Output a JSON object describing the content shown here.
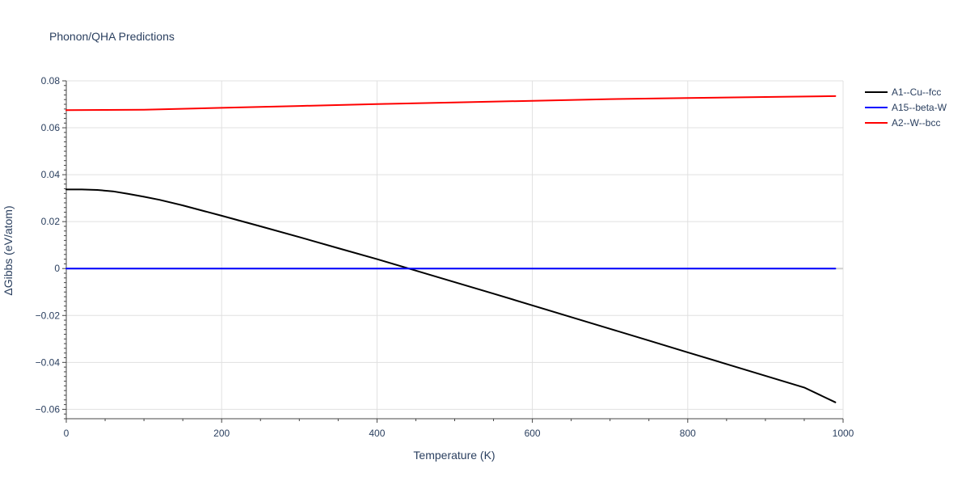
{
  "chart_data": {
    "type": "line",
    "title": "Phonon/QHA Predictions",
    "xlabel": "Temperature (K)",
    "ylabel": "ΔGibbs (eV/atom)",
    "xlim": [
      0,
      1000
    ],
    "ylim": [
      -0.064,
      0.08
    ],
    "xticks": [
      0,
      200,
      400,
      600,
      800,
      1000
    ],
    "xtick_labels": [
      "0",
      "200",
      "400",
      "600",
      "800",
      "1000"
    ],
    "yticks": [
      -0.06,
      -0.04,
      -0.02,
      0,
      0.02,
      0.04,
      0.06,
      0.08
    ],
    "ytick_labels": [
      "−0.06",
      "−0.04",
      "−0.02",
      "0",
      "0.02",
      "0.04",
      "0.06",
      "0.08"
    ],
    "grid": true,
    "legend_position": "top-right outside",
    "series": [
      {
        "name": "A1--Cu--fcc",
        "color": "#000000",
        "x": [
          0,
          20,
          40,
          60,
          80,
          100,
          120,
          150,
          200,
          250,
          300,
          350,
          400,
          450,
          500,
          550,
          600,
          650,
          700,
          750,
          800,
          850,
          900,
          950,
          990
        ],
        "y": [
          0.0337,
          0.0337,
          0.0335,
          0.0329,
          0.0318,
          0.0306,
          0.0293,
          0.0269,
          0.0225,
          0.018,
          0.0134,
          0.0087,
          0.004,
          -0.0009,
          -0.0058,
          -0.0107,
          -0.0157,
          -0.0207,
          -0.0257,
          -0.0307,
          -0.0357,
          -0.0407,
          -0.0457,
          -0.0507,
          -0.057
        ]
      },
      {
        "name": "A15--beta-W",
        "color": "#0000ff",
        "x": [
          0,
          990
        ],
        "y": [
          0,
          0
        ]
      },
      {
        "name": "A2--W--bcc",
        "color": "#ff0000",
        "x": [
          0,
          50,
          100,
          200,
          300,
          400,
          500,
          600,
          700,
          800,
          900,
          990
        ],
        "y": [
          0.0675,
          0.0676,
          0.0677,
          0.0685,
          0.0693,
          0.0701,
          0.0708,
          0.0715,
          0.0722,
          0.0727,
          0.0731,
          0.0735
        ]
      }
    ]
  }
}
